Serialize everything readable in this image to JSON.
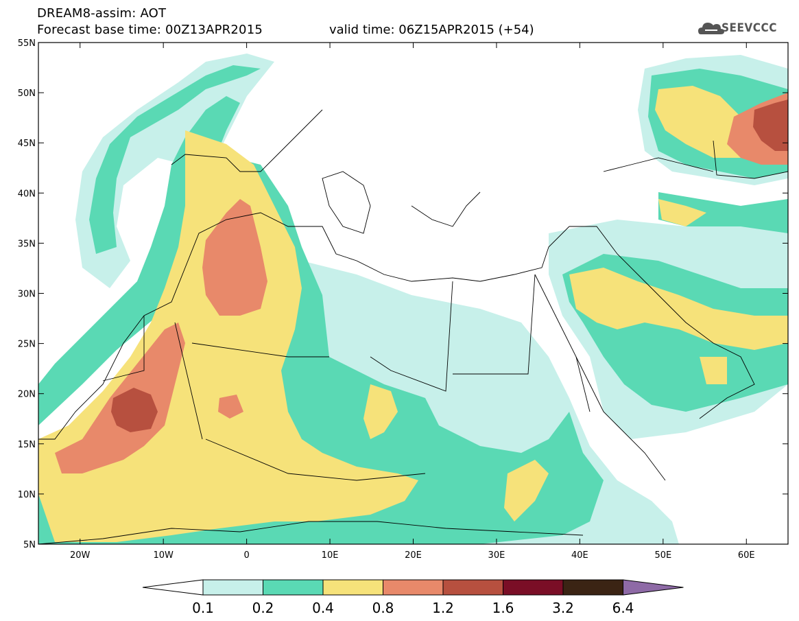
{
  "header": {
    "title": "DREAM8-assim: AOT",
    "base_time": "Forecast base time: 00Z13APR2015",
    "valid_time": "valid time: 06Z15APR2015 (+54)",
    "logo_text": "SEEVCCC"
  },
  "map": {
    "lon_range": [
      -25,
      65
    ],
    "lat_range": [
      5,
      55
    ],
    "lat_labels": [
      "55N",
      "50N",
      "45N",
      "40N",
      "35N",
      "30N",
      "25N",
      "20N",
      "15N",
      "10N",
      "5N"
    ],
    "lon_labels": [
      "20W",
      "10W",
      "0",
      "10E",
      "20E",
      "30E",
      "40E",
      "50E",
      "60E"
    ]
  },
  "colorbar": {
    "levels": [
      "0.1",
      "0.2",
      "0.4",
      "0.8",
      "1.2",
      "1.6",
      "3.2",
      "6.4"
    ],
    "colors": [
      "#ffffff",
      "#c7f0ea",
      "#5ad9b4",
      "#f6e27a",
      "#e8896a",
      "#b7503f",
      "#7a0e26",
      "#3b2414",
      "#8e6aa6"
    ]
  },
  "colors": {
    "white": "#ffffff",
    "light_teal": "#c7f0ea",
    "teal": "#5ad9b4",
    "yellow": "#f6e27a",
    "orange": "#e8896a",
    "brick": "#b7503f",
    "land_border": "#000000"
  }
}
